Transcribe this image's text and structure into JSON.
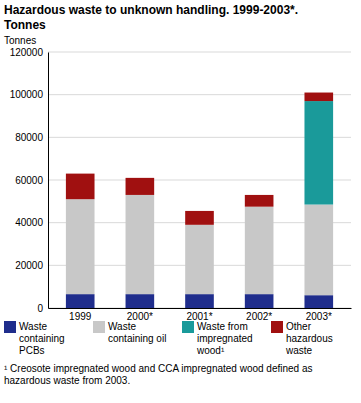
{
  "chart_data": {
    "type": "bar",
    "stacked": true,
    "grid": true,
    "legend": "bottom",
    "title": "Hazardous waste to unknown handling. 1999-2003*.",
    "subtitle": "Tonnes",
    "y_label": "Tonnes",
    "note": "¹ Creosote impregnated wood and CCA impregnated wood defined as hazardous waste from 2003.",
    "categories": [
      "1999",
      "2000*",
      "2001*",
      "2002*",
      "2003*"
    ],
    "series": [
      {
        "name": "Waste containing PCBs",
        "color": "#1f2d8c",
        "values": [
          6500,
          6500,
          6500,
          6500,
          6000
        ]
      },
      {
        "name": "Waste containing oil",
        "color": "#c8c8c8",
        "values": [
          44500,
          46500,
          32500,
          41000,
          42500
        ]
      },
      {
        "name": "Waste from impregnated wood¹",
        "color": "#1a9a9a",
        "values": [
          0,
          0,
          0,
          0,
          48500
        ]
      },
      {
        "name": "Other hazardous waste",
        "color": "#a01010",
        "values": [
          12000,
          8000,
          6500,
          5500,
          4000
        ]
      }
    ],
    "ylim": [
      0,
      120000
    ],
    "yticks": [
      0,
      20000,
      40000,
      60000,
      80000,
      100000,
      120000
    ]
  }
}
